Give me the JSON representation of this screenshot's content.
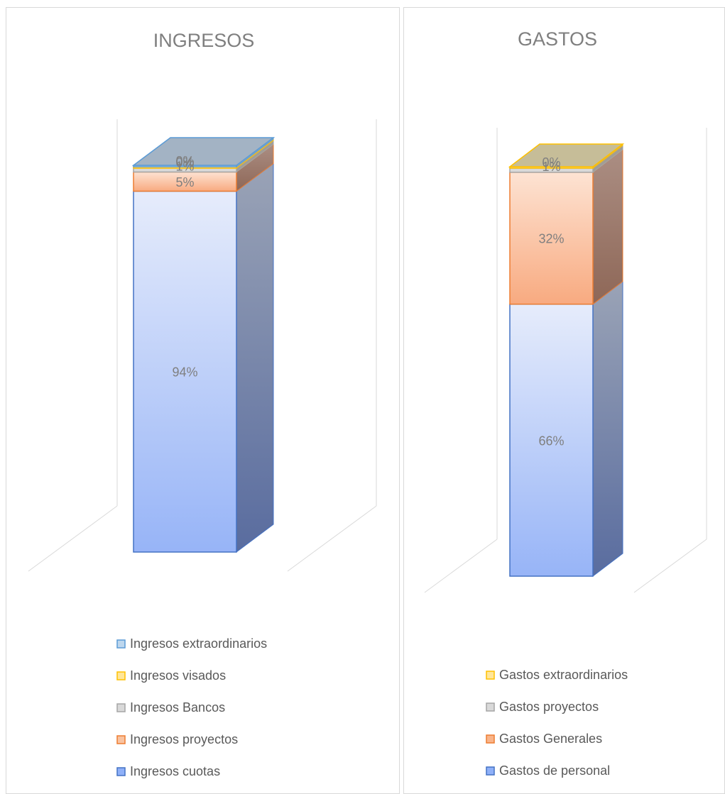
{
  "chart_data": [
    {
      "type": "bar",
      "stacked": true,
      "style": "3d-stacked-100",
      "title": "INGRESOS",
      "ylim": [
        0,
        100
      ],
      "series": [
        {
          "name": "Ingresos cuotas",
          "values": [
            94
          ],
          "label": "94%",
          "color": "#8fb0f8",
          "border": "#4472c4"
        },
        {
          "name": "Ingresos proyectos",
          "values": [
            5
          ],
          "label": "5%",
          "color": "#f9c3a1",
          "border": "#ed7d31"
        },
        {
          "name": "Ingresos Bancos",
          "values": [
            1
          ],
          "label": "1%",
          "color": "#d9d9d9",
          "border": "#a5a5a5"
        },
        {
          "name": "Ingresos visados",
          "values": [
            0
          ],
          "label": "0%",
          "color": "#ffe699",
          "border": "#ffc000"
        },
        {
          "name": "Ingresos extraordinarios",
          "values": [
            0
          ],
          "label": "0%",
          "color": "#bdd7ee",
          "border": "#5b9bd5"
        }
      ],
      "legend": "bottom"
    },
    {
      "type": "bar",
      "stacked": true,
      "style": "3d-stacked-100",
      "title": "GASTOS",
      "ylim": [
        0,
        100
      ],
      "series": [
        {
          "name": "Gastos de personal",
          "values": [
            66
          ],
          "label": "66%",
          "color": "#8fb0f8",
          "border": "#4472c4"
        },
        {
          "name": "Gastos Generales",
          "values": [
            32
          ],
          "label": "32%",
          "color": "#f9b48a",
          "border": "#ed7d31"
        },
        {
          "name": "Gastos proyectos",
          "values": [
            1
          ],
          "label": "1%",
          "color": "#d9d9d9",
          "border": "#a5a5a5"
        },
        {
          "name": "Gastos extraordinarios",
          "values": [
            0
          ],
          "label": "0%",
          "color": "#ffe699",
          "border": "#ffc000"
        }
      ],
      "legend": "bottom"
    }
  ]
}
